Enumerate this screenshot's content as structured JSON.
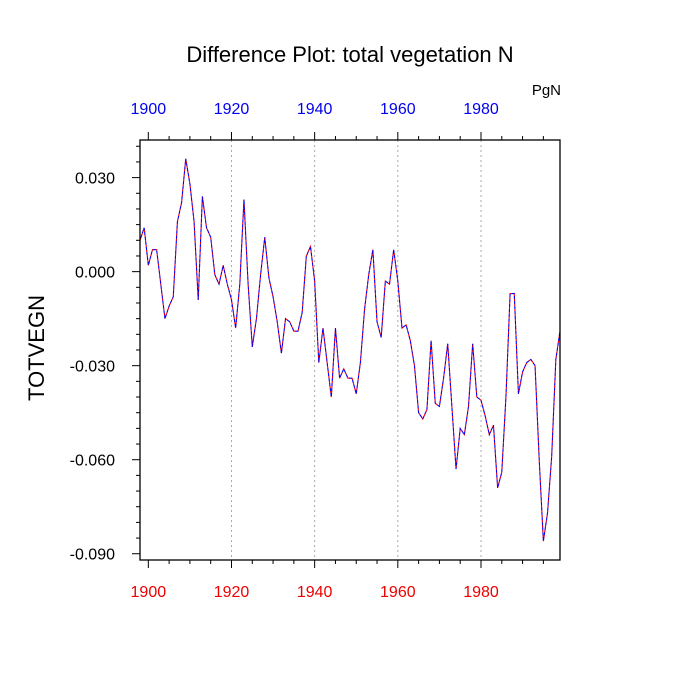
{
  "chart_data": {
    "type": "line",
    "title": "Difference Plot: total vegetation N",
    "units": "PgN",
    "ylabel": "TOTVEGN",
    "xlabel": "",
    "xlim": [
      1898,
      1999
    ],
    "ylim": [
      -0.092,
      0.042
    ],
    "x_ticks": [
      "1900",
      "1920",
      "1940",
      "1960",
      "1980"
    ],
    "y_ticks": [
      "0.030",
      "0.000",
      "-0.030",
      "-0.060",
      "-0.090"
    ],
    "top_tick_color": "#0000ee",
    "bottom_tick_color": "#ee0000",
    "grid_color": "#aaaaaa",
    "series": [
      {
        "name": "TOTVEGN",
        "color_a": "#ff0000",
        "color_b": "#0000ff",
        "x": [
          1898,
          1899,
          1900,
          1901,
          1902,
          1903,
          1904,
          1905,
          1906,
          1907,
          1908,
          1909,
          1910,
          1911,
          1912,
          1913,
          1914,
          1915,
          1916,
          1917,
          1918,
          1919,
          1920,
          1921,
          1922,
          1923,
          1924,
          1925,
          1926,
          1927,
          1928,
          1929,
          1930,
          1931,
          1932,
          1933,
          1934,
          1935,
          1936,
          1937,
          1938,
          1939,
          1940,
          1941,
          1942,
          1943,
          1944,
          1945,
          1946,
          1947,
          1948,
          1949,
          1950,
          1951,
          1952,
          1953,
          1954,
          1955,
          1956,
          1957,
          1958,
          1959,
          1960,
          1961,
          1962,
          1963,
          1964,
          1965,
          1966,
          1967,
          1968,
          1969,
          1970,
          1971,
          1972,
          1973,
          1974,
          1975,
          1976,
          1977,
          1978,
          1979,
          1980,
          1981,
          1982,
          1983,
          1984,
          1985,
          1986,
          1987,
          1988,
          1989,
          1990,
          1991,
          1992,
          1993,
          1994,
          1995,
          1996,
          1997,
          1998,
          1999
        ],
        "values": [
          0.01,
          0.014,
          0.002,
          0.007,
          0.007,
          -0.004,
          -0.015,
          -0.011,
          -0.008,
          0.016,
          0.022,
          0.036,
          0.028,
          0.016,
          -0.009,
          0.024,
          0.014,
          0.011,
          -0.001,
          -0.004,
          0.002,
          -0.004,
          -0.009,
          -0.018,
          -0.004,
          0.023,
          -0.004,
          -0.024,
          -0.015,
          -0.001,
          0.011,
          -0.002,
          -0.008,
          -0.016,
          -0.026,
          -0.015,
          -0.016,
          -0.019,
          -0.019,
          -0.013,
          0.005,
          0.008,
          -0.003,
          -0.029,
          -0.018,
          -0.029,
          -0.04,
          -0.018,
          -0.034,
          -0.031,
          -0.034,
          -0.034,
          -0.039,
          -0.029,
          -0.012,
          -0.001,
          0.007,
          -0.016,
          -0.021,
          -0.003,
          -0.004,
          0.007,
          -0.003,
          -0.018,
          -0.017,
          -0.022,
          -0.03,
          -0.045,
          -0.047,
          -0.044,
          -0.022,
          -0.042,
          -0.043,
          -0.034,
          -0.023,
          -0.043,
          -0.063,
          -0.05,
          -0.052,
          -0.043,
          -0.023,
          -0.04,
          -0.041,
          -0.046,
          -0.052,
          -0.049,
          -0.069,
          -0.064,
          -0.04,
          -0.007,
          -0.007,
          -0.039,
          -0.032,
          -0.029,
          -0.028,
          -0.03,
          -0.06,
          -0.086,
          -0.077,
          -0.059,
          -0.028,
          -0.019
        ]
      }
    ]
  }
}
